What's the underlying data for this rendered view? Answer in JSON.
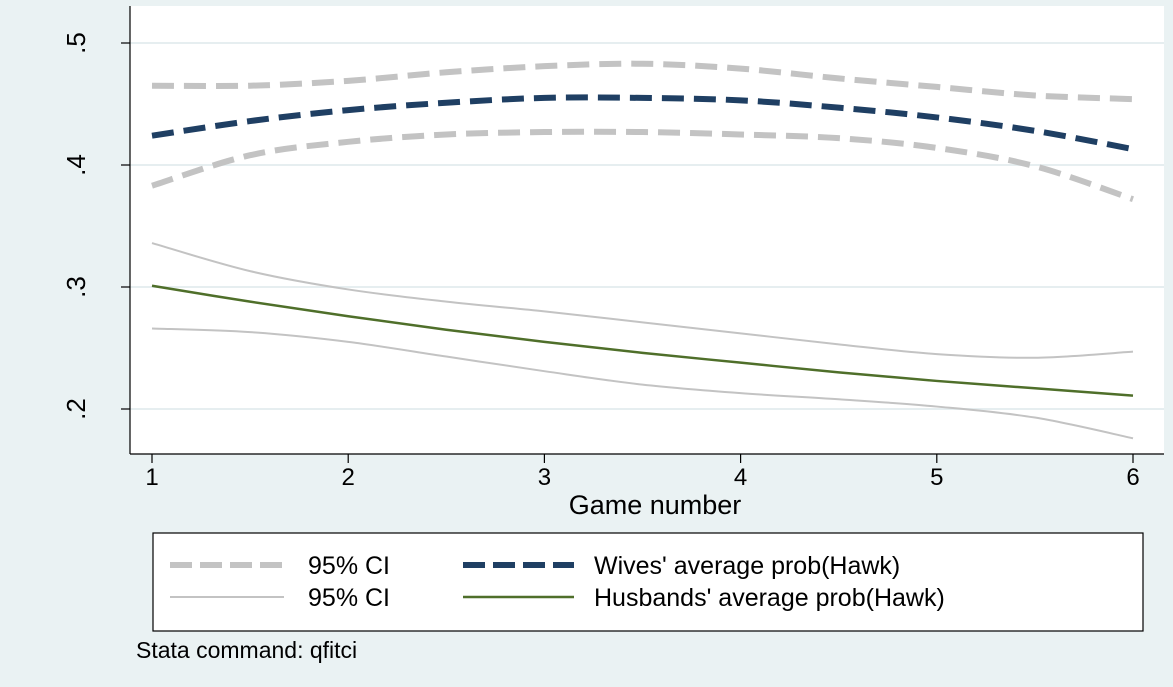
{
  "chart_data": {
    "type": "line",
    "xlabel": "Game number",
    "ylabel": "",
    "title": "",
    "x_ticks": [
      1,
      2,
      3,
      4,
      5,
      6
    ],
    "y_ticks": [
      0.2,
      0.3,
      0.4,
      0.5
    ],
    "y_tick_labels": [
      ".2",
      ".3",
      ".4",
      ".5"
    ],
    "xlim": [
      0.9,
      6.05
    ],
    "ylim": [
      0.165,
      0.53
    ],
    "grid": true,
    "legend_position": "bottom",
    "series": [
      {
        "name": "95% CI",
        "group": "wives",
        "role": "ci-upper",
        "color": "#c3c3c3",
        "style": "dashed-thick",
        "x": [
          1,
          1.5,
          2,
          2.5,
          3,
          3.5,
          4,
          4.5,
          5,
          5.5,
          6
        ],
        "y": [
          0.465,
          0.465,
          0.469,
          0.476,
          0.481,
          0.483,
          0.479,
          0.471,
          0.464,
          0.457,
          0.454
        ]
      },
      {
        "name": "Wives' average prob(Hawk)",
        "group": "wives",
        "role": "fit",
        "color": "#1f3f63",
        "style": "dashed-thick",
        "x": [
          1,
          1.5,
          2,
          2.5,
          3,
          3.5,
          4,
          4.5,
          5,
          5.5,
          6
        ],
        "y": [
          0.424,
          0.436,
          0.445,
          0.451,
          0.455,
          0.455,
          0.453,
          0.447,
          0.439,
          0.428,
          0.413
        ]
      },
      {
        "name": "95% CI",
        "group": "wives",
        "role": "ci-lower",
        "color": "#c3c3c3",
        "style": "dashed-thick",
        "x": [
          1,
          1.5,
          2,
          2.5,
          3,
          3.5,
          4,
          4.5,
          5,
          5.5,
          6
        ],
        "y": [
          0.383,
          0.408,
          0.419,
          0.425,
          0.427,
          0.427,
          0.425,
          0.422,
          0.414,
          0.399,
          0.372
        ]
      },
      {
        "name": "95% CI",
        "group": "husbands",
        "role": "ci-upper",
        "color": "#c3c3c3",
        "style": "solid-thin",
        "x": [
          1,
          1.5,
          2,
          2.5,
          3,
          3.5,
          4,
          4.5,
          5,
          5.5,
          6
        ],
        "y": [
          0.336,
          0.313,
          0.298,
          0.288,
          0.28,
          0.271,
          0.262,
          0.253,
          0.245,
          0.242,
          0.247
        ]
      },
      {
        "name": "Husbands' average prob(Hawk)",
        "group": "husbands",
        "role": "fit",
        "color": "#4f6f2a",
        "style": "solid",
        "x": [
          1,
          1.5,
          2,
          2.5,
          3,
          3.5,
          4,
          4.5,
          5,
          5.5,
          6
        ],
        "y": [
          0.301,
          0.288,
          0.276,
          0.265,
          0.255,
          0.246,
          0.238,
          0.23,
          0.223,
          0.217,
          0.211
        ]
      },
      {
        "name": "95% CI",
        "group": "husbands",
        "role": "ci-lower",
        "color": "#c3c3c3",
        "style": "solid-thin",
        "x": [
          1,
          1.5,
          2,
          2.5,
          3,
          3.5,
          4,
          4.5,
          5,
          5.5,
          6
        ],
        "y": [
          0.266,
          0.263,
          0.255,
          0.243,
          0.231,
          0.22,
          0.213,
          0.208,
          0.202,
          0.193,
          0.176
        ]
      }
    ],
    "legend": [
      {
        "label": "95% CI",
        "color": "#c3c3c3",
        "style": "dashed-thick"
      },
      {
        "label": "Wives' average prob(Hawk)",
        "color": "#1f3f63",
        "style": "dashed-thick"
      },
      {
        "label": "95% CI",
        "color": "#c3c3c3",
        "style": "solid-thin"
      },
      {
        "label": "Husbands' average prob(Hawk)",
        "color": "#4f6f2a",
        "style": "solid"
      }
    ],
    "note": "Stata command: qfitci"
  },
  "colors": {
    "outer_background": "#eaf2f3",
    "plot_background": "#ffffff",
    "grid": "#e6eef0",
    "axis": "#000000"
  }
}
